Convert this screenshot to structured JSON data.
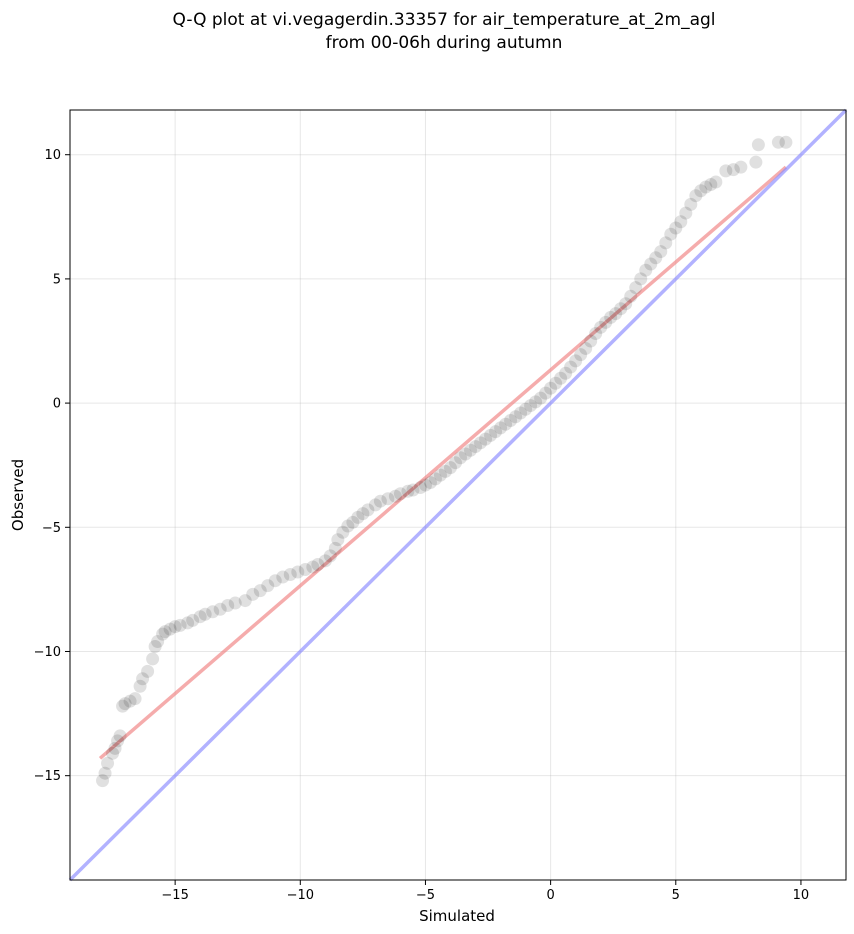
{
  "chart_data": {
    "type": "scatter",
    "title": [
      "Q-Q plot at vi.vegagerdin.33357 for air_temperature_at_2m_agl",
      "from 00-06h during autumn"
    ],
    "xlabel": "Simulated",
    "ylabel": "Observed",
    "xlim": [
      -19.2,
      11.8
    ],
    "ylim": [
      -19.2,
      11.8
    ],
    "xticks": [
      -15,
      -10,
      -5,
      0,
      5,
      10
    ],
    "yticks": [
      -15,
      -10,
      -5,
      0,
      5,
      10
    ],
    "xtick_labels": [
      "−15",
      "−10",
      "−5",
      "0",
      "5",
      "10"
    ],
    "ytick_labels": [
      "−15",
      "−10",
      "−5",
      "0",
      "5",
      "10"
    ],
    "grid": true,
    "point_color": "#000000",
    "series": [
      {
        "kind": "points",
        "points": [
          [
            -17.9,
            -15.2
          ],
          [
            -17.8,
            -14.9
          ],
          [
            -17.7,
            -14.5
          ],
          [
            -17.5,
            -14.1
          ],
          [
            -17.4,
            -13.9
          ],
          [
            -17.3,
            -13.6
          ],
          [
            -17.2,
            -13.4
          ],
          [
            -17.1,
            -12.2
          ],
          [
            -17.0,
            -12.1
          ],
          [
            -16.8,
            -12.0
          ],
          [
            -16.6,
            -11.9
          ],
          [
            -16.4,
            -11.4
          ],
          [
            -16.3,
            -11.1
          ],
          [
            -16.1,
            -10.8
          ],
          [
            -15.9,
            -10.3
          ],
          [
            -15.8,
            -9.8
          ],
          [
            -15.7,
            -9.6
          ],
          [
            -15.5,
            -9.3
          ],
          [
            -15.4,
            -9.2
          ],
          [
            -15.2,
            -9.1
          ],
          [
            -15.0,
            -9.0
          ],
          [
            -14.8,
            -8.95
          ],
          [
            -14.5,
            -8.85
          ],
          [
            -14.3,
            -8.75
          ],
          [
            -14.0,
            -8.6
          ],
          [
            -13.8,
            -8.5
          ],
          [
            -13.5,
            -8.4
          ],
          [
            -13.2,
            -8.3
          ],
          [
            -12.9,
            -8.15
          ],
          [
            -12.6,
            -8.05
          ],
          [
            -12.2,
            -7.95
          ],
          [
            -11.9,
            -7.7
          ],
          [
            -11.6,
            -7.55
          ],
          [
            -11.3,
            -7.35
          ],
          [
            -11.0,
            -7.15
          ],
          [
            -10.7,
            -7.0
          ],
          [
            -10.4,
            -6.9
          ],
          [
            -10.1,
            -6.8
          ],
          [
            -9.8,
            -6.7
          ],
          [
            -9.5,
            -6.6
          ],
          [
            -9.3,
            -6.5
          ],
          [
            -9.0,
            -6.35
          ],
          [
            -8.8,
            -6.15
          ],
          [
            -8.6,
            -5.85
          ],
          [
            -8.5,
            -5.5
          ],
          [
            -8.3,
            -5.2
          ],
          [
            -8.1,
            -4.95
          ],
          [
            -7.9,
            -4.8
          ],
          [
            -7.7,
            -4.6
          ],
          [
            -7.5,
            -4.45
          ],
          [
            -7.3,
            -4.3
          ],
          [
            -7.0,
            -4.1
          ],
          [
            -6.8,
            -3.95
          ],
          [
            -6.5,
            -3.85
          ],
          [
            -6.2,
            -3.75
          ],
          [
            -6.0,
            -3.65
          ],
          [
            -5.7,
            -3.55
          ],
          [
            -5.5,
            -3.5
          ],
          [
            -5.2,
            -3.4
          ],
          [
            -5.0,
            -3.3
          ],
          [
            -4.8,
            -3.2
          ],
          [
            -4.6,
            -3.05
          ],
          [
            -4.4,
            -2.9
          ],
          [
            -4.2,
            -2.75
          ],
          [
            -4.0,
            -2.6
          ],
          [
            -3.8,
            -2.4
          ],
          [
            -3.6,
            -2.2
          ],
          [
            -3.4,
            -2.05
          ],
          [
            -3.2,
            -1.9
          ],
          [
            -3.0,
            -1.75
          ],
          [
            -2.8,
            -1.6
          ],
          [
            -2.6,
            -1.45
          ],
          [
            -2.4,
            -1.3
          ],
          [
            -2.2,
            -1.15
          ],
          [
            -2.0,
            -1.0
          ],
          [
            -1.8,
            -0.85
          ],
          [
            -1.6,
            -0.7
          ],
          [
            -1.4,
            -0.55
          ],
          [
            -1.2,
            -0.4
          ],
          [
            -1.0,
            -0.25
          ],
          [
            -0.8,
            -0.1
          ],
          [
            -0.6,
            0.05
          ],
          [
            -0.4,
            0.2
          ],
          [
            -0.2,
            0.4
          ],
          [
            0.0,
            0.6
          ],
          [
            0.2,
            0.8
          ],
          [
            0.4,
            1.0
          ],
          [
            0.6,
            1.2
          ],
          [
            0.8,
            1.45
          ],
          [
            1.0,
            1.7
          ],
          [
            1.2,
            1.95
          ],
          [
            1.4,
            2.2
          ],
          [
            1.6,
            2.5
          ],
          [
            1.8,
            2.8
          ],
          [
            2.0,
            3.05
          ],
          [
            2.2,
            3.25
          ],
          [
            2.4,
            3.45
          ],
          [
            2.6,
            3.6
          ],
          [
            2.8,
            3.8
          ],
          [
            3.0,
            4.0
          ],
          [
            3.2,
            4.3
          ],
          [
            3.4,
            4.65
          ],
          [
            3.6,
            5.0
          ],
          [
            3.8,
            5.35
          ],
          [
            4.0,
            5.6
          ],
          [
            4.2,
            5.85
          ],
          [
            4.4,
            6.1
          ],
          [
            4.6,
            6.45
          ],
          [
            4.8,
            6.8
          ],
          [
            5.0,
            7.05
          ],
          [
            5.2,
            7.3
          ],
          [
            5.4,
            7.65
          ],
          [
            5.6,
            8.0
          ],
          [
            5.8,
            8.35
          ],
          [
            6.0,
            8.55
          ],
          [
            6.2,
            8.7
          ],
          [
            6.4,
            8.8
          ],
          [
            6.6,
            8.9
          ],
          [
            7.0,
            9.35
          ],
          [
            7.3,
            9.4
          ],
          [
            7.6,
            9.5
          ],
          [
            8.2,
            9.7
          ],
          [
            8.3,
            10.4
          ],
          [
            9.1,
            10.5
          ],
          [
            9.4,
            10.5
          ]
        ]
      },
      {
        "kind": "line",
        "color": "#f08080",
        "points": [
          [
            -18.0,
            -14.3
          ],
          [
            9.4,
            9.5
          ]
        ]
      },
      {
        "kind": "line",
        "color": "#8888ff",
        "points": [
          [
            -19.2,
            -19.2
          ],
          [
            11.8,
            11.8
          ]
        ]
      }
    ]
  }
}
